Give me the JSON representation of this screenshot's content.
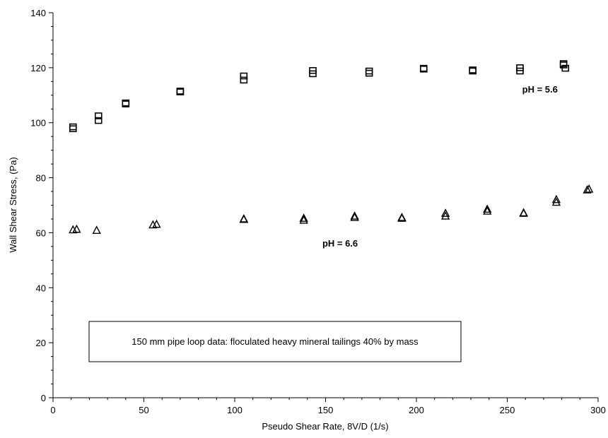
{
  "chart_data": {
    "type": "scatter",
    "xlabel": "Pseudo Shear Rate, 8V/D (1/s)",
    "ylabel": "Wall Shear Stress, (Pa)",
    "xlim": [
      0,
      300
    ],
    "ylim": [
      0,
      140
    ],
    "xticks": [
      0,
      50,
      100,
      150,
      200,
      250,
      300
    ],
    "yticks": [
      0,
      20,
      40,
      60,
      80,
      100,
      120,
      140
    ],
    "grid": false,
    "series": [
      {
        "marker": "square",
        "points": [
          [
            11,
            98.5
          ],
          [
            11,
            97.8
          ],
          [
            25,
            102.5
          ],
          [
            25,
            100.8
          ],
          [
            40,
            107.2
          ],
          [
            40,
            106.8
          ],
          [
            70,
            111.5
          ],
          [
            70,
            111.2
          ],
          [
            105,
            117.0
          ],
          [
            105,
            115.5
          ],
          [
            143,
            119.0
          ],
          [
            143,
            117.8
          ],
          [
            174,
            118.8
          ],
          [
            174,
            118.0
          ],
          [
            204,
            119.8
          ],
          [
            204,
            119.5
          ],
          [
            231,
            119.2
          ],
          [
            231,
            118.8
          ],
          [
            257,
            120.0
          ],
          [
            257,
            118.8
          ],
          [
            281,
            121.5
          ],
          [
            281,
            121.0
          ],
          [
            282,
            119.8
          ]
        ]
      },
      {
        "marker": "triangle",
        "points": [
          [
            11,
            61.0
          ],
          [
            13,
            61.2
          ],
          [
            24,
            60.8
          ],
          [
            55,
            62.8
          ],
          [
            57,
            63.0
          ],
          [
            105,
            64.8
          ],
          [
            105,
            65.0
          ],
          [
            138,
            64.5
          ],
          [
            138,
            65.2
          ],
          [
            166,
            65.5
          ],
          [
            166,
            66.0
          ],
          [
            192,
            65.2
          ],
          [
            192,
            65.5
          ],
          [
            216,
            66.0
          ],
          [
            216,
            67.0
          ],
          [
            239,
            67.8
          ],
          [
            239,
            68.5
          ],
          [
            259,
            67.0
          ],
          [
            259,
            67.2
          ],
          [
            277,
            71.0
          ],
          [
            277,
            72.0
          ],
          [
            294,
            75.5
          ],
          [
            295,
            75.8
          ]
        ]
      }
    ],
    "annotations": [
      {
        "text": "pH = 5.6",
        "x": 268,
        "y": 111
      },
      {
        "text": "pH = 6.6",
        "x": 158,
        "y": 55
      }
    ],
    "note": "150 mm pipe loop data: floculated heavy mineral tailings 40% by mass"
  }
}
